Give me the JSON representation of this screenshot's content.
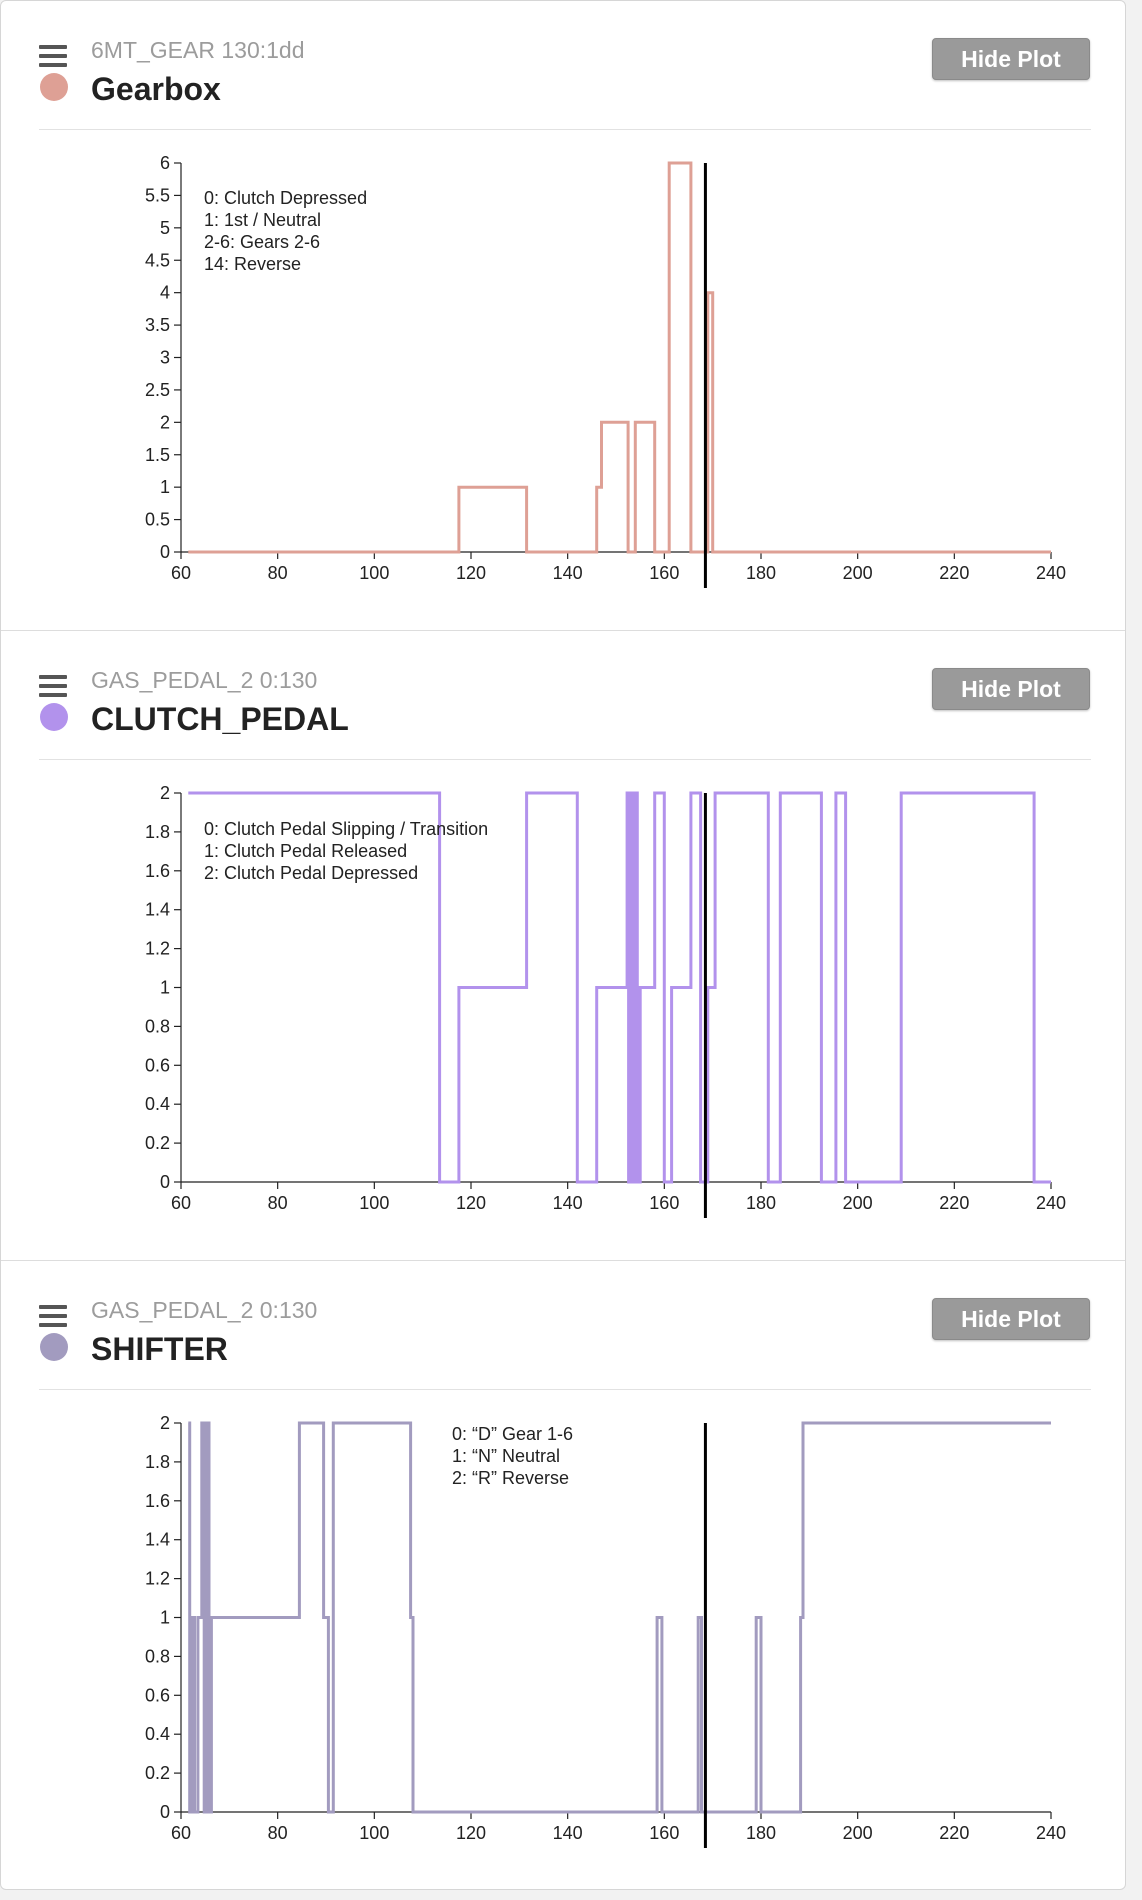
{
  "panels": [
    {
      "subtitle": "6MT_GEAR 130:1dd",
      "title": "Gearbox",
      "hide_label": "Hide Plot",
      "color": "#dea095",
      "legend": [
        "0: Clutch Depressed",
        "1: 1st / Neutral",
        "2-6: Gears 2-6",
        "14: Reverse"
      ]
    },
    {
      "subtitle": "GAS_PEDAL_2 0:130",
      "title": "CLUTCH_PEDAL",
      "hide_label": "Hide Plot",
      "color": "#b292ec",
      "legend": [
        "0: Clutch Pedal Slipping / Transition",
        "1: Clutch Pedal Released",
        "2: Clutch Pedal Depressed"
      ]
    },
    {
      "subtitle": "GAS_PEDAL_2 0:130",
      "title": "SHIFTER",
      "hide_label": "Hide Plot",
      "color": "#a29bbf",
      "legend": [
        "0: “D” Gear 1-6",
        "1: “N” Neutral",
        "2: “R” Reverse"
      ]
    }
  ],
  "chart_data": [
    {
      "type": "line",
      "step": true,
      "title": "Gearbox",
      "cursor_x": 168.5,
      "xlim": [
        60,
        240
      ],
      "ylim": [
        0,
        6
      ],
      "xticks": [
        60,
        80,
        100,
        120,
        140,
        160,
        180,
        200,
        220,
        240
      ],
      "yticks": [
        0,
        0.5,
        1,
        1.5,
        2,
        2.5,
        3,
        3.5,
        4,
        4.5,
        5,
        5.5,
        6
      ],
      "ytick_labels": [
        "0",
        "0.5",
        "1",
        "1.5",
        "2",
        "2.5",
        "3",
        "3.5",
        "4",
        "4.5",
        "5",
        "5.5",
        "6"
      ],
      "series": [
        {
          "name": "Gearbox",
          "x": [
            61.5,
            117.5,
            117.5,
            131.5,
            131.5,
            146,
            146,
            147,
            147,
            152.5,
            152.5,
            154,
            154,
            158,
            158,
            161,
            161,
            165.5,
            165.5,
            169,
            169,
            170,
            170,
            240
          ],
          "y": [
            0,
            0,
            1,
            1,
            0,
            0,
            1,
            1,
            2,
            2,
            0,
            0,
            2,
            2,
            0,
            0,
            6,
            6,
            0,
            0,
            4,
            4,
            0,
            0
          ]
        }
      ]
    },
    {
      "type": "line",
      "step": true,
      "title": "CLUTCH_PEDAL",
      "cursor_x": 168.5,
      "xlim": [
        60,
        240
      ],
      "ylim": [
        0,
        2
      ],
      "xticks": [
        60,
        80,
        100,
        120,
        140,
        160,
        180,
        200,
        220,
        240
      ],
      "yticks": [
        0,
        0.2,
        0.4,
        0.6,
        0.8,
        1,
        1.2,
        1.4,
        1.6,
        1.8,
        2
      ],
      "ytick_labels": [
        "0",
        "0.2",
        "0.4",
        "0.6",
        "0.8",
        "1",
        "1.2",
        "1.4",
        "1.6",
        "1.8",
        "2"
      ],
      "series": [
        {
          "name": "CLUTCH_PEDAL",
          "x": [
            61.5,
            113.5,
            113.5,
            117.5,
            117.5,
            131.5,
            131.5,
            142,
            142,
            146,
            146,
            152.3,
            152.3,
            152.6,
            152.6,
            152.9,
            152.9,
            153.2,
            153.2,
            153.5,
            153.5,
            153.8,
            153.8,
            154.1,
            154.1,
            154.4,
            154.4,
            155,
            155,
            158,
            158,
            160,
            160,
            161.5,
            161.5,
            165.5,
            165.5,
            167.5,
            167.5,
            169,
            169,
            170.5,
            170.5,
            181.5,
            181.5,
            184,
            184,
            192.5,
            192.5,
            195.5,
            195.5,
            197.5,
            197.5,
            209,
            209,
            236.5,
            236.5,
            240
          ],
          "y": [
            2,
            2,
            0,
            0,
            1,
            1,
            2,
            2,
            0,
            0,
            1,
            1,
            2,
            2,
            0,
            0,
            2,
            2,
            0,
            0,
            2,
            2,
            0,
            0,
            2,
            2,
            0,
            0,
            1,
            1,
            2,
            2,
            0,
            0,
            1,
            1,
            2,
            2,
            0,
            0,
            1,
            1,
            2,
            2,
            0,
            0,
            2,
            2,
            0,
            0,
            2,
            2,
            0,
            0,
            2,
            2,
            0,
            0
          ]
        }
      ]
    },
    {
      "type": "line",
      "step": true,
      "title": "SHIFTER",
      "cursor_x": 168.5,
      "xlim": [
        60,
        240
      ],
      "ylim": [
        0,
        2
      ],
      "xticks": [
        60,
        80,
        100,
        120,
        140,
        160,
        180,
        200,
        220,
        240
      ],
      "yticks": [
        0,
        0.2,
        0.4,
        0.6,
        0.8,
        1,
        1.2,
        1.4,
        1.6,
        1.8,
        2
      ],
      "ytick_labels": [
        "0",
        "0.2",
        "0.4",
        "0.6",
        "0.8",
        "1",
        "1.2",
        "1.4",
        "1.6",
        "1.8",
        "2"
      ],
      "series": [
        {
          "name": "SHIFTER",
          "x": [
            61.5,
            61.8,
            61.8,
            62.2,
            62.2,
            62.8,
            62.8,
            63.5,
            63.5,
            64.3,
            64.3,
            64.8,
            64.8,
            65.3,
            65.3,
            65.8,
            65.8,
            66.3,
            66.3,
            66.8,
            66.8,
            84.5,
            84.5,
            89.5,
            89.5,
            90.5,
            90.5,
            91.5,
            91.5,
            107.5,
            107.5,
            108,
            108,
            158.5,
            158.5,
            159.5,
            159.5,
            167,
            167,
            167.7,
            167.7,
            179,
            179,
            180,
            180,
            188.2,
            188.2,
            188.7,
            188.7,
            240
          ],
          "y": [
            2,
            2,
            0,
            0,
            1,
            1,
            0,
            0,
            1,
            1,
            2,
            2,
            0,
            0,
            2,
            2,
            0,
            0,
            1,
            1,
            1,
            1,
            2,
            2,
            1,
            1,
            0,
            0,
            2,
            2,
            1,
            1,
            0,
            0,
            1,
            1,
            0,
            0,
            1,
            1,
            0,
            0,
            1,
            1,
            0,
            0,
            1,
            1,
            2,
            2
          ]
        }
      ]
    }
  ]
}
